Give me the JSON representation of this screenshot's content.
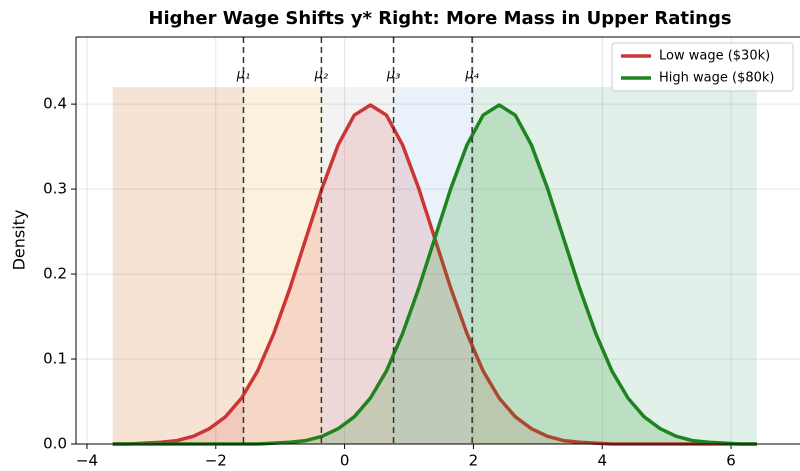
{
  "chart_data": {
    "type": "line",
    "title": "Higher Wage Shifts y* Right: More Mass in Upper Ratings",
    "ylabel": "Density",
    "x": [
      -3.6,
      -3.35,
      -3.1,
      -2.85,
      -2.6,
      -2.35,
      -2.1,
      -1.85,
      -1.6,
      -1.35,
      -1.1,
      -0.85,
      -0.6,
      -0.35,
      -0.1,
      0.15,
      0.4,
      0.65,
      0.9,
      1.15,
      1.4,
      1.65,
      1.9,
      2.15,
      2.4,
      2.65,
      2.9,
      3.15,
      3.4,
      3.65,
      3.9,
      4.15,
      4.4,
      4.65,
      4.9,
      5.15,
      5.4,
      5.65,
      5.9,
      6.15,
      6.4
    ],
    "series": [
      {
        "name": "Low wage ($30k)",
        "color": "#cc3535",
        "fill": "rgba(214,60,60,0.15)",
        "values": [
          0.0,
          0.0,
          0.001,
          0.002,
          0.004,
          0.009,
          0.018,
          0.032,
          0.054,
          0.086,
          0.13,
          0.183,
          0.242,
          0.301,
          0.352,
          0.387,
          0.399,
          0.387,
          0.352,
          0.301,
          0.242,
          0.183,
          0.13,
          0.086,
          0.054,
          0.032,
          0.018,
          0.009,
          0.004,
          0.002,
          0.001,
          0.0,
          0.0,
          0,
          0,
          0,
          0,
          0,
          0,
          0,
          0
        ]
      },
      {
        "name": "High wage ($80k)",
        "color": "#1f841f",
        "fill": "rgba(40,150,40,0.2)",
        "values": [
          0,
          0,
          0,
          0,
          0,
          0,
          0,
          0,
          0.0,
          0.0,
          0.001,
          0.002,
          0.004,
          0.009,
          0.018,
          0.032,
          0.054,
          0.086,
          0.13,
          0.183,
          0.242,
          0.301,
          0.352,
          0.387,
          0.399,
          0.387,
          0.352,
          0.301,
          0.242,
          0.183,
          0.13,
          0.086,
          0.054,
          0.032,
          0.018,
          0.009,
          0.004,
          0.002,
          0.001,
          0.0,
          0.0
        ]
      }
    ],
    "thresholds": [
      {
        "value": -1.57,
        "label": "μ₁"
      },
      {
        "value": -0.36,
        "label": "μ₂"
      },
      {
        "value": 0.76,
        "label": "μ₃"
      },
      {
        "value": 1.98,
        "label": "μ₄"
      }
    ],
    "bands": {
      "x0": -3.6,
      "x1": 6.4,
      "top": 0.42,
      "colors": [
        "#f7e3d3",
        "#fcf1dc",
        "#f3f3f3",
        "#e9f2fb",
        "#e1f1ea"
      ]
    },
    "xlim": [
      -4.17,
      7.07
    ],
    "ylim": [
      0,
      0.479
    ],
    "xticks": [
      {
        "value": -4,
        "label": "−4"
      },
      {
        "value": -2,
        "label": "−2"
      },
      0,
      2,
      4,
      6
    ],
    "yticks": [
      {
        "value": 0,
        "label": "0.0"
      },
      {
        "value": 0.1,
        "label": "0.1"
      },
      {
        "value": 0.2,
        "label": "0.2"
      },
      {
        "value": 0.3,
        "label": "0.3"
      },
      {
        "value": 0.4,
        "label": "0.4"
      }
    ],
    "grid": true,
    "legend": "upper right"
  }
}
